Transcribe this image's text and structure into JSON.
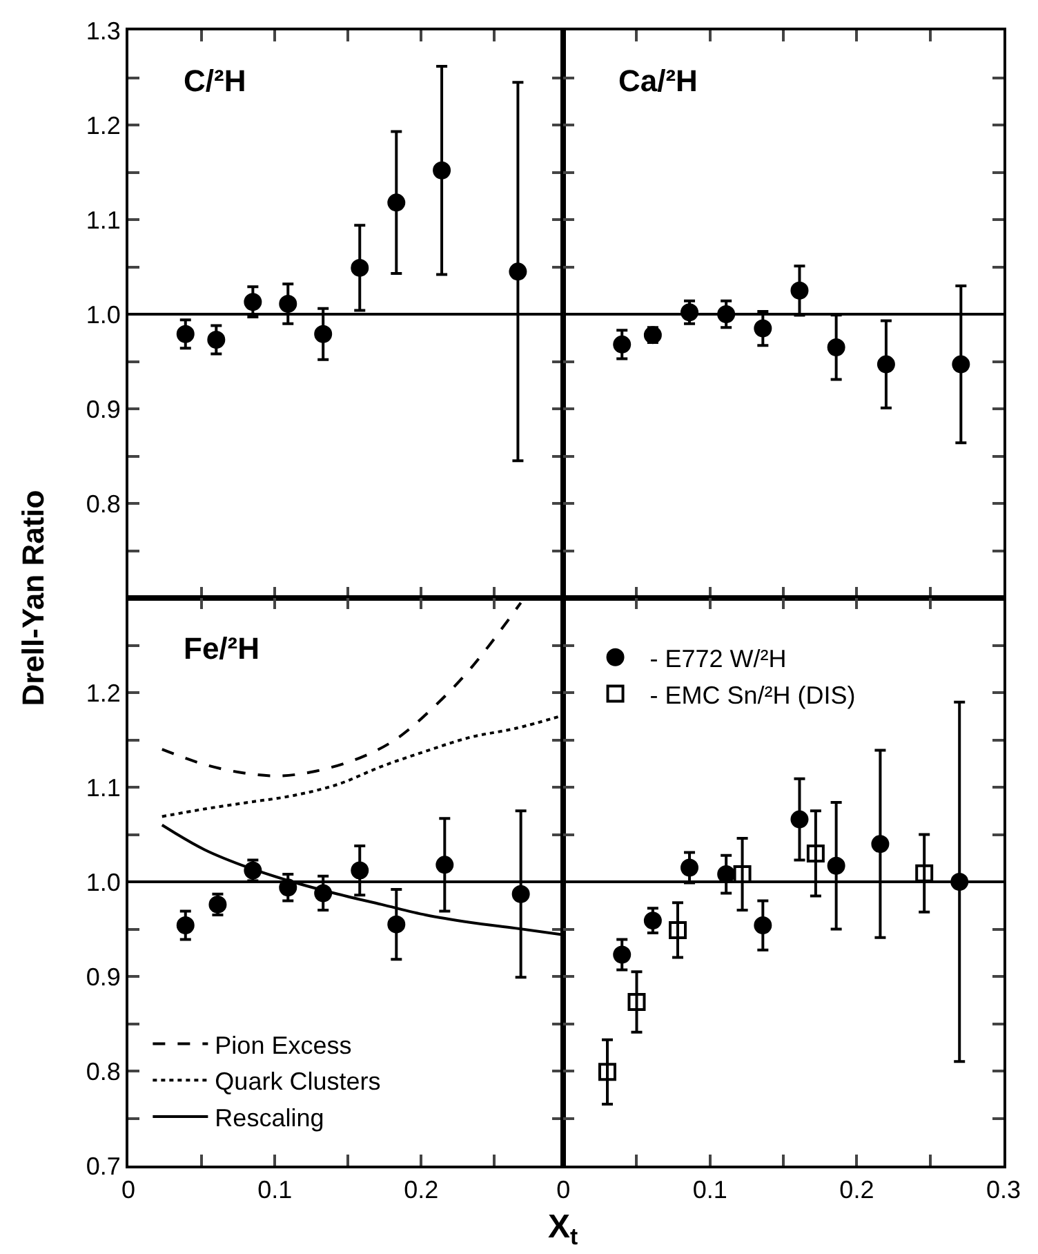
{
  "chart_data": [
    {
      "type": "scatter",
      "title": "C/²H",
      "ylabel": "Drell-Yan Ratio",
      "marker": "circle",
      "tick_labels": "y",
      "xlim": [
        0,
        0.297
      ],
      "ylim": [
        0.7,
        1.3
      ],
      "xticks": [
        0,
        0.05,
        0.1,
        0.15,
        0.2,
        0.25
      ],
      "yticks": [
        {
          "value": 0.7,
          "label": null
        },
        {
          "value": 0.75,
          "label": null
        },
        0.8,
        {
          "value": 0.85,
          "label": null
        },
        0.9,
        {
          "value": 0.95,
          "label": null
        },
        {
          "value": 1.0,
          "label": "1.0"
        },
        {
          "value": 1.05,
          "label": null
        },
        1.1,
        {
          "value": 1.15,
          "label": null
        },
        1.2,
        {
          "value": 1.25,
          "label": null
        },
        1.3
      ],
      "ref_lines": [
        {
          "axis": "y",
          "value": 1.0
        }
      ],
      "series": [
        {
          "color": "#000000",
          "x": [
            0.039,
            0.06,
            0.085,
            0.109,
            0.133,
            0.158,
            0.183,
            0.214,
            0.266
          ],
          "values": [
            0.979,
            0.973,
            1.013,
            1.011,
            0.979,
            1.049,
            1.118,
            1.152,
            1.045
          ],
          "errors": [
            0.015,
            0.015,
            0.016,
            0.021,
            0.027,
            0.045,
            0.075,
            0.11,
            0.2
          ]
        }
      ]
    },
    {
      "type": "scatter",
      "title": "Ca/²H",
      "marker": "circle",
      "tick_labels": false,
      "xlim": [
        0,
        0.3
      ],
      "ylim": [
        0.7,
        1.3
      ],
      "xticks": [
        0,
        0.05,
        0.1,
        0.15,
        0.2,
        0.25,
        0.3
      ],
      "yticks": [
        0.7,
        0.75,
        0.8,
        0.85,
        0.9,
        0.95,
        1.0,
        1.05,
        1.1,
        1.15,
        1.2,
        1.25,
        1.3
      ],
      "ref_lines": [
        {
          "axis": "y",
          "value": 1.0
        }
      ],
      "series": [
        {
          "color": "#000000",
          "x": [
            0.04,
            0.061,
            0.086,
            0.111,
            0.136,
            0.161,
            0.186,
            0.22,
            0.271
          ],
          "values": [
            0.968,
            0.978,
            1.002,
            1.0,
            0.985,
            1.025,
            0.965,
            0.947,
            0.947
          ],
          "errors": [
            0.015,
            0.008,
            0.012,
            0.014,
            0.018,
            0.026,
            0.034,
            0.046,
            0.083
          ]
        }
      ]
    },
    {
      "type": "scatter",
      "title": "Fe/²H",
      "xlabel": "X$_{t}$",
      "legend": "bottom left",
      "xlim": [
        0,
        0.297
      ],
      "ylim": [
        0.7,
        1.3
      ],
      "xticks": [
        0,
        {
          "value": 0.05,
          "label": null
        },
        0.1,
        {
          "value": 0.15,
          "label": null
        },
        0.2,
        {
          "value": 0.25,
          "label": null
        }
      ],
      "yticks": [
        0.7,
        {
          "value": 0.75,
          "label": null
        },
        0.8,
        {
          "value": 0.85,
          "label": null
        },
        0.9,
        {
          "value": 0.95,
          "label": null
        },
        {
          "value": 1.0,
          "label": "1.0"
        },
        {
          "value": 1.05,
          "label": null
        },
        1.1,
        {
          "value": 1.15,
          "label": null
        },
        1.2,
        {
          "value": 1.25,
          "label": null
        },
        {
          "value": 1.3,
          "label": null
        }
      ],
      "ref_lines": [
        {
          "axis": "y",
          "value": 1.0
        }
      ],
      "series": [
        {
          "marker": "circle",
          "color": "#000000",
          "x": [
            0.039,
            0.061,
            0.085,
            0.109,
            0.133,
            0.158,
            0.183,
            0.216,
            0.268
          ],
          "values": [
            0.954,
            0.976,
            1.012,
            0.994,
            0.988,
            1.012,
            0.955,
            1.018,
            0.987
          ],
          "errors": [
            0.015,
            0.011,
            0.011,
            0.014,
            0.018,
            0.026,
            0.037,
            0.049,
            0.088
          ]
        },
        {
          "type": "line",
          "name": "Pion Excess",
          "line_style": "dashed",
          "color": "#000000",
          "x": [
            0.023,
            0.052,
            0.079,
            0.103,
            0.128,
            0.158,
            0.182,
            0.206,
            0.234,
            0.268
          ],
          "values": [
            1.14,
            1.124,
            1.115,
            1.112,
            1.117,
            1.131,
            1.15,
            1.181,
            1.226,
            1.295
          ]
        },
        {
          "type": "line",
          "name": "Quark Clusters",
          "line_style": "dotted",
          "color": "#000000",
          "x": [
            0.023,
            0.052,
            0.082,
            0.112,
            0.143,
            0.173,
            0.203,
            0.234,
            0.264,
            0.297
          ],
          "values": [
            1.069,
            1.077,
            1.084,
            1.091,
            1.103,
            1.122,
            1.138,
            1.153,
            1.162,
            1.176
          ]
        },
        {
          "type": "line",
          "name": "Rescaling",
          "line_style": "solid",
          "color": "#000000",
          "x": [
            0.023,
            0.052,
            0.082,
            0.112,
            0.143,
            0.173,
            0.203,
            0.234,
            0.264,
            0.297
          ],
          "values": [
            1.06,
            1.034,
            1.015,
            1.0,
            0.987,
            0.976,
            0.965,
            0.957,
            0.951,
            0.944
          ]
        }
      ]
    },
    {
      "type": "scatter",
      "legend": "top left",
      "tick_labels": "x",
      "xlim": [
        0,
        0.3
      ],
      "ylim": [
        0.7,
        1.3
      ],
      "xticks": [
        0,
        {
          "value": 0.05,
          "label": null
        },
        0.1,
        {
          "value": 0.15,
          "label": null
        },
        0.2,
        {
          "value": 0.25,
          "label": null
        },
        0.3
      ],
      "yticks": [
        0.7,
        0.75,
        0.8,
        0.85,
        0.9,
        0.95,
        1.0,
        1.05,
        1.1,
        1.15,
        1.2,
        1.25,
        1.3
      ],
      "ref_lines": [
        {
          "axis": "y",
          "value": 1.0
        }
      ],
      "series": [
        {
          "name": "- E772 W/²H",
          "marker": "circle",
          "color": "#000000",
          "x": [
            0.04,
            0.061,
            0.086,
            0.111,
            0.136,
            0.161,
            0.186,
            0.216,
            0.27
          ],
          "values": [
            0.923,
            0.959,
            1.015,
            1.008,
            0.954,
            1.066,
            1.017,
            1.04,
            1.0
          ],
          "errors": [
            0.016,
            0.013,
            0.016,
            0.02,
            0.026,
            0.043,
            0.067,
            0.099,
            0.19
          ]
        },
        {
          "name": "- EMC Sn/²H (DIS)",
          "marker": "square",
          "color": "#000000",
          "x": [
            0.03,
            0.05,
            0.078,
            0.122,
            0.172,
            0.246
          ],
          "values": [
            0.799,
            0.873,
            0.949,
            1.008,
            1.03,
            1.009
          ],
          "errors": [
            0.034,
            0.032,
            0.029,
            0.038,
            0.045,
            0.041
          ]
        }
      ]
    }
  ]
}
